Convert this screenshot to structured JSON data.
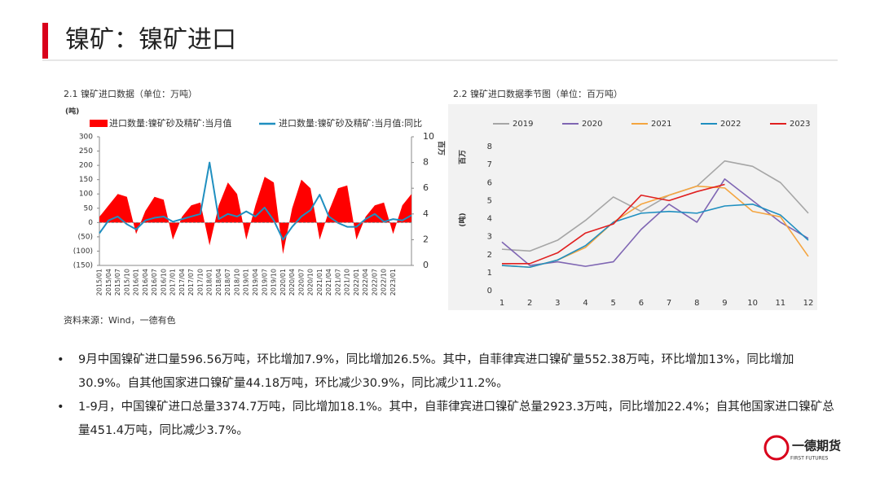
{
  "header": {
    "title": "镍矿：镍矿进口"
  },
  "chart_data": [
    {
      "type": "combo",
      "title": "2.1 镍矿进口数据（单位：万吨）",
      "y_label": "(吨)",
      "y2_label": "百万",
      "categories": [
        "2015/01",
        "2015/04",
        "2015/07",
        "2015/10",
        "2016/01",
        "2016/04",
        "2016/07",
        "2016/10",
        "2017/01",
        "2017/04",
        "2017/07",
        "2017/10",
        "2018/01",
        "2018/04",
        "2018/07",
        "2018/10",
        "2019/01",
        "2019/04",
        "2019/07",
        "2019/10",
        "2020/01",
        "2020/04",
        "2020/07",
        "2020/10",
        "2021/01",
        "2021/04",
        "2021/07",
        "2021/10",
        "2022/01",
        "2022/04",
        "2022/07",
        "2022/10",
        "2023/01",
        null,
        null
      ],
      "series": [
        {
          "name": "进口数量:镍矿砂及精矿:当月值",
          "type": "area",
          "color": "#ff0000",
          "values": [
            20,
            60,
            100,
            90,
            -40,
            40,
            90,
            80,
            -60,
            20,
            60,
            70,
            -80,
            60,
            140,
            100,
            -60,
            60,
            160,
            140,
            -110,
            50,
            150,
            120,
            -60,
            40,
            120,
            130,
            -60,
            20,
            60,
            70,
            -40,
            60,
            100
          ]
        },
        {
          "name": "进口数量:镍矿砂及精矿:当月值:同比",
          "type": "line",
          "axis": "y2",
          "color": "#1f8fc0",
          "values": [
            2.5,
            3.5,
            3.8,
            3.2,
            2.8,
            3.5,
            3.7,
            3.8,
            3.4,
            3.6,
            3.8,
            4.0,
            8.0,
            3.6,
            4.0,
            3.8,
            4.2,
            3.8,
            4.5,
            3.5,
            2.0,
            3.0,
            3.8,
            4.3,
            5.5,
            3.8,
            3.3,
            3.0,
            3.0,
            3.6,
            4.0,
            3.4,
            3.6,
            3.5,
            3.9
          ]
        }
      ],
      "ylim": [
        -150,
        300
      ],
      "yticks": [
        {
          "value": -150,
          "label": "(150)"
        },
        {
          "value": -100,
          "label": "(100)"
        },
        {
          "value": -50,
          "label": "(50)"
        },
        0,
        50,
        100,
        150,
        200,
        250,
        300
      ],
      "y2lim": [
        0,
        10
      ],
      "y2ticks": [
        0,
        2,
        4,
        6,
        8,
        10
      ]
    },
    {
      "type": "line",
      "title": "2.2 镍矿进口数据季节图（单位：百万吨）",
      "y_label": "(吨)",
      "y_unit": "百万",
      "categories": [
        "1",
        "2",
        "3",
        "4",
        "5",
        "6",
        "7",
        "8",
        "9",
        "10",
        "11",
        "12"
      ],
      "series": [
        {
          "name": "2019",
          "color": "#a6a6a6",
          "values": [
            2.3,
            2.2,
            2.8,
            3.9,
            5.2,
            4.4,
            5.3,
            5.8,
            7.2,
            6.9,
            6.0,
            4.3
          ]
        },
        {
          "name": "2020",
          "color": "#7f66b3",
          "values": [
            2.7,
            1.4,
            1.6,
            1.35,
            1.6,
            3.4,
            4.8,
            3.8,
            6.2,
            5.0,
            3.8,
            2.9
          ]
        },
        {
          "name": "2021",
          "color": "#f4a540",
          "values": [
            1.4,
            1.3,
            1.7,
            2.4,
            3.8,
            4.8,
            5.3,
            5.8,
            5.7,
            4.4,
            4.1,
            1.9
          ]
        },
        {
          "name": "2022",
          "color": "#1f8fc0",
          "values": [
            1.4,
            1.3,
            1.7,
            2.5,
            3.8,
            4.3,
            4.4,
            4.3,
            4.7,
            4.8,
            4.2,
            2.8
          ]
        },
        {
          "name": "2023",
          "color": "#e02020",
          "values": [
            1.5,
            1.5,
            2.1,
            3.2,
            3.7,
            5.3,
            5.0,
            5.5,
            5.9,
            null,
            null,
            null
          ]
        }
      ],
      "ylim": [
        0,
        8
      ],
      "yticks": [
        0,
        1,
        2,
        3,
        4,
        5,
        6,
        7,
        8
      ]
    }
  ],
  "source": "资料来源：Wind，一德有色",
  "bullets": [
    "9月中国镍矿进口量596.56万吨，环比增加7.9%，同比增加26.5%。其中，自菲律宾进口镍矿量552.38万吨，环比增加13%，同比增加30.9%。自其他国家进口镍矿量44.18万吨，环比减少30.9%，同比减少11.2%。",
    "1-9月，中国镍矿进口总量3374.7万吨，同比增加18.1%。其中，自菲律宾进口镍矿总量2923.3万吨，同比增加22.4%；自其他国家进口镍矿总量451.4万吨，同比减少3.7%。"
  ],
  "logo": {
    "name": "一德期货",
    "subtitle": "FIRST FUTURES"
  }
}
